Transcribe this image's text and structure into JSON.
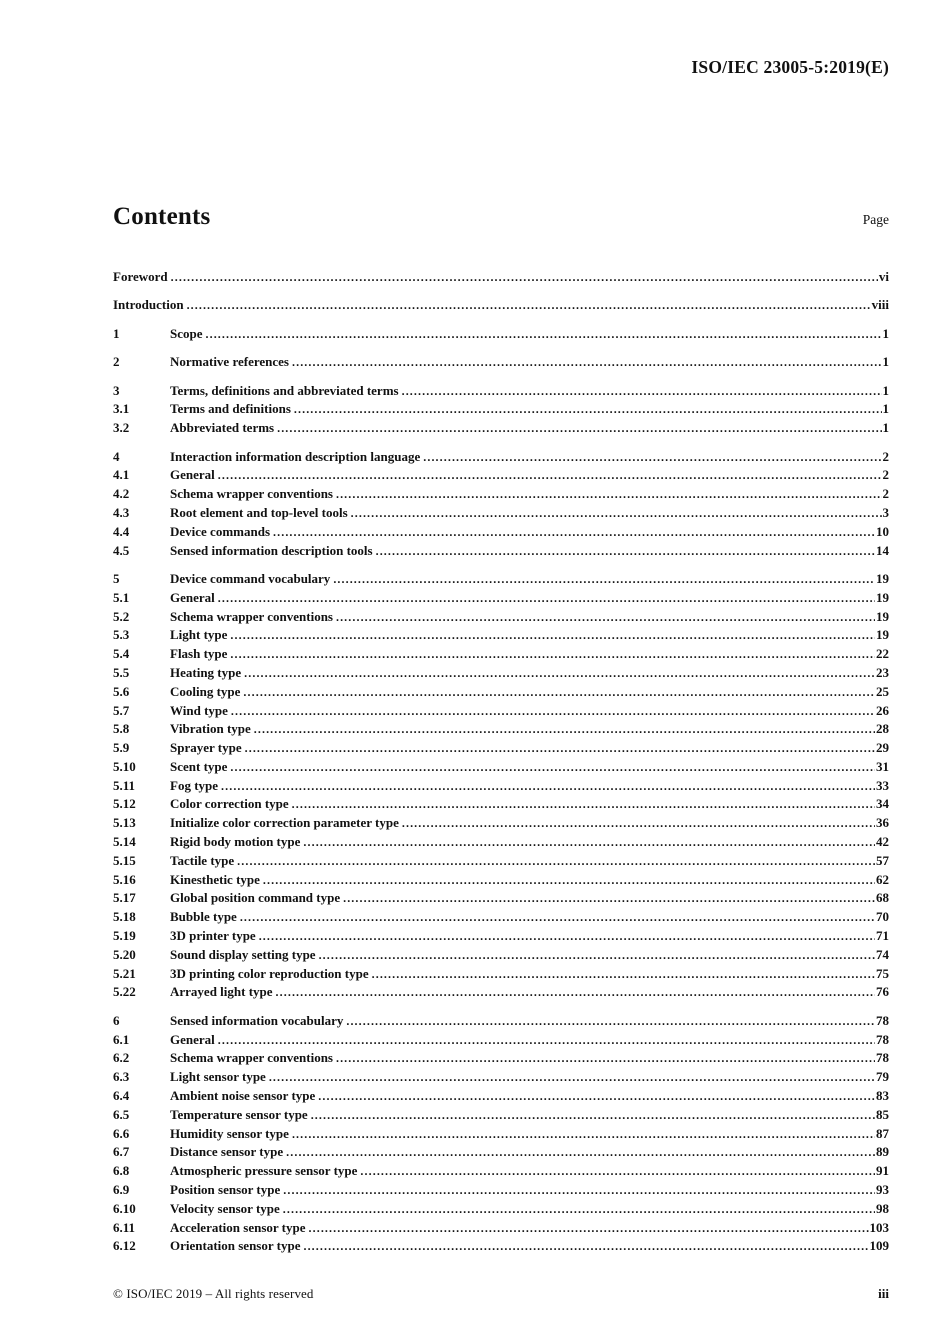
{
  "header": {
    "doc_reference": "ISO/IEC 23005-5:2019(E)"
  },
  "contents": {
    "title": "Contents",
    "page_label": "Page",
    "groups": [
      {
        "entries": [
          {
            "num": "",
            "title": "Foreword",
            "page": "vi"
          }
        ]
      },
      {
        "entries": [
          {
            "num": "",
            "title": "Introduction",
            "page": "viii"
          }
        ]
      },
      {
        "entries": [
          {
            "num": "1",
            "title": "Scope",
            "page": "1"
          }
        ]
      },
      {
        "entries": [
          {
            "num": "2",
            "title": "Normative references",
            "page": "1"
          }
        ]
      },
      {
        "entries": [
          {
            "num": "3",
            "title": "Terms, definitions and abbreviated terms",
            "page": "1"
          },
          {
            "num": "3.1",
            "title": "Terms and definitions",
            "page": "1"
          },
          {
            "num": "3.2",
            "title": "Abbreviated terms",
            "page": "1"
          }
        ]
      },
      {
        "entries": [
          {
            "num": "4",
            "title": "Interaction information description language",
            "page": "2"
          },
          {
            "num": "4.1",
            "title": "General",
            "page": "2"
          },
          {
            "num": "4.2",
            "title": "Schema wrapper conventions",
            "page": "2"
          },
          {
            "num": "4.3",
            "title": "Root element and top-level tools",
            "page": "3"
          },
          {
            "num": "4.4",
            "title": "Device commands",
            "page": "10"
          },
          {
            "num": "4.5",
            "title": "Sensed information description tools",
            "page": "14"
          }
        ]
      },
      {
        "entries": [
          {
            "num": "5",
            "title": "Device command vocabulary",
            "page": "19"
          },
          {
            "num": "5.1",
            "title": "General",
            "page": "19"
          },
          {
            "num": "5.2",
            "title": "Schema wrapper conventions",
            "page": "19"
          },
          {
            "num": "5.3",
            "title": "Light type",
            "page": "19"
          },
          {
            "num": "5.4",
            "title": "Flash type",
            "page": "22"
          },
          {
            "num": "5.5",
            "title": "Heating type",
            "page": "23"
          },
          {
            "num": "5.6",
            "title": "Cooling type",
            "page": "25"
          },
          {
            "num": "5.7",
            "title": "Wind type",
            "page": "26"
          },
          {
            "num": "5.8",
            "title": "Vibration type",
            "page": "28"
          },
          {
            "num": "5.9",
            "title": "Sprayer type",
            "page": "29"
          },
          {
            "num": "5.10",
            "title": "Scent type",
            "page": "31"
          },
          {
            "num": "5.11",
            "title": "Fog type",
            "page": "33"
          },
          {
            "num": "5.12",
            "title": "Color correction type",
            "page": "34"
          },
          {
            "num": "5.13",
            "title": "Initialize color correction parameter type",
            "page": "36"
          },
          {
            "num": "5.14",
            "title": "Rigid body motion type",
            "page": "42"
          },
          {
            "num": "5.15",
            "title": "Tactile type",
            "page": "57"
          },
          {
            "num": "5.16",
            "title": "Kinesthetic type",
            "page": "62"
          },
          {
            "num": "5.17",
            "title": "Global position command type",
            "page": "68"
          },
          {
            "num": "5.18",
            "title": "Bubble type",
            "page": "70"
          },
          {
            "num": "5.19",
            "title": "3D printer type",
            "page": "71"
          },
          {
            "num": "5.20",
            "title": "Sound display setting type",
            "page": "74"
          },
          {
            "num": "5.21",
            "title": "3D printing color reproduction type",
            "page": "75"
          },
          {
            "num": "5.22",
            "title": "Arrayed light type",
            "page": "76"
          }
        ]
      },
      {
        "entries": [
          {
            "num": "6",
            "title": "Sensed information vocabulary",
            "page": "78"
          },
          {
            "num": "6.1",
            "title": "General",
            "page": "78"
          },
          {
            "num": "6.2",
            "title": "Schema wrapper conventions",
            "page": "78"
          },
          {
            "num": "6.3",
            "title": "Light sensor type",
            "page": "79"
          },
          {
            "num": "6.4",
            "title": "Ambient noise sensor type",
            "page": "83"
          },
          {
            "num": "6.5",
            "title": "Temperature sensor type",
            "page": "85"
          },
          {
            "num": "6.6",
            "title": "Humidity sensor type",
            "page": "87"
          },
          {
            "num": "6.7",
            "title": "Distance sensor type",
            "page": "89"
          },
          {
            "num": "6.8",
            "title": "Atmospheric pressure sensor type",
            "page": "91"
          },
          {
            "num": "6.9",
            "title": "Position sensor type",
            "page": "93"
          },
          {
            "num": "6.10",
            "title": "Velocity sensor type",
            "page": "98"
          },
          {
            "num": "6.11",
            "title": "Acceleration sensor type",
            "page": "103"
          },
          {
            "num": "6.12",
            "title": "Orientation sensor type",
            "page": "109"
          }
        ]
      }
    ]
  },
  "footer": {
    "copyright": "© ISO/IEC 2019 – All rights reserved",
    "page_number": "iii"
  }
}
